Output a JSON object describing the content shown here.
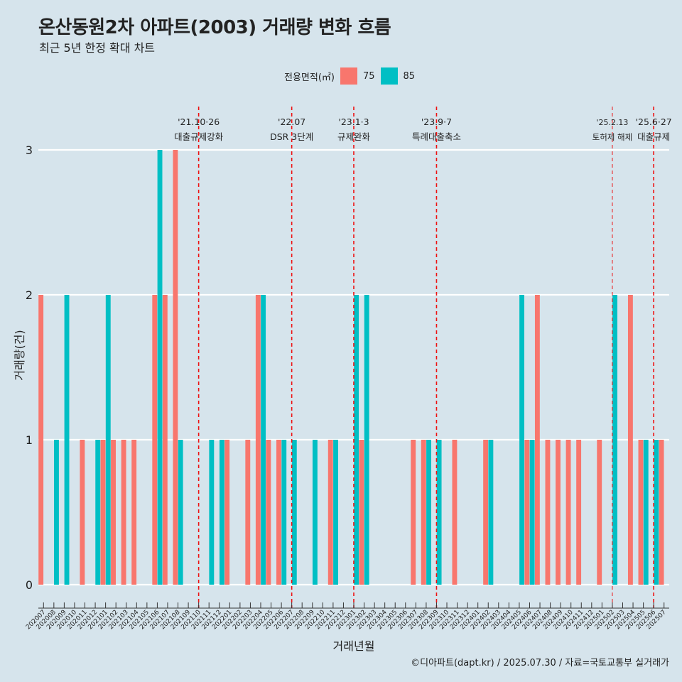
{
  "header": {
    "title": "온산동원2차 아파트(2003) 거래량 변화 흐름",
    "subtitle": "최근 5년 한정 확대 차트"
  },
  "legend": {
    "title": "전용면적(㎡)",
    "items": [
      {
        "label": "75",
        "color": "#f8766d"
      },
      {
        "label": "85",
        "color": "#00bfc4"
      }
    ]
  },
  "caption": "©디아파트(dapt.kr) / 2025.07.30 / 자료=국토교통부 실거래가",
  "chart_data": {
    "type": "bar",
    "xlabel": "거래년월",
    "ylabel": "거래량(건)",
    "ylim": [
      0,
      3
    ],
    "yticks": [
      0,
      1,
      2,
      3
    ],
    "grid": true,
    "legend_position": "top",
    "categories": [
      "202007",
      "202008",
      "202009",
      "202010",
      "202011",
      "202012",
      "202101",
      "202102",
      "202103",
      "202104",
      "202105",
      "202106",
      "202107",
      "202108",
      "202109",
      "202110",
      "202111",
      "202112",
      "202201",
      "202202",
      "202203",
      "202204",
      "202205",
      "202206",
      "202207",
      "202208",
      "202209",
      "202210",
      "202211",
      "202212",
      "202301",
      "202302",
      "202303",
      "202304",
      "202305",
      "202306",
      "202307",
      "202308",
      "202309",
      "202310",
      "202311",
      "202312",
      "202401",
      "202402",
      "202403",
      "202404",
      "202405",
      "202406",
      "202407",
      "202408",
      "202409",
      "202410",
      "202411",
      "202412",
      "202501",
      "202502",
      "202503",
      "202504",
      "202505",
      "202506",
      "202507"
    ],
    "series": [
      {
        "name": "75",
        "color": "#f8766d",
        "values": [
          2,
          0,
          0,
          0,
          1,
          0,
          1,
          1,
          1,
          1,
          0,
          2,
          2,
          3,
          0,
          0,
          0,
          0,
          1,
          0,
          1,
          2,
          1,
          1,
          0,
          0,
          0,
          0,
          1,
          0,
          0,
          1,
          0,
          0,
          0,
          0,
          1,
          1,
          0,
          0,
          1,
          0,
          0,
          1,
          0,
          0,
          0,
          1,
          2,
          1,
          1,
          1,
          1,
          0,
          1,
          0,
          0,
          2,
          1,
          0,
          1
        ]
      },
      {
        "name": "85",
        "color": "#00bfc4",
        "values": [
          0,
          1,
          2,
          0,
          0,
          1,
          2,
          0,
          0,
          0,
          0,
          3,
          0,
          1,
          0,
          0,
          1,
          1,
          0,
          0,
          0,
          2,
          0,
          1,
          1,
          0,
          1,
          0,
          1,
          0,
          2,
          2,
          0,
          0,
          0,
          0,
          0,
          1,
          1,
          0,
          0,
          0,
          0,
          1,
          0,
          0,
          2,
          1,
          0,
          0,
          0,
          0,
          0,
          0,
          0,
          2,
          0,
          0,
          1,
          1,
          0
        ]
      }
    ],
    "annotations": [
      {
        "month": "202110",
        "date": "'21.10·26",
        "label": "대출규제강화"
      },
      {
        "month": "202207",
        "date": "'22.07",
        "label": "DSR 3단계"
      },
      {
        "month": "202301",
        "date": "'23.1·3",
        "label": "규제완화"
      },
      {
        "month": "202309",
        "date": "'23.9·7",
        "label": "특례대출축소"
      },
      {
        "month": "202502",
        "date": "'25.2.13",
        "label": "토허제 해제"
      },
      {
        "month": "202506",
        "date": "'25.6·27",
        "label": "대출규제"
      }
    ]
  }
}
